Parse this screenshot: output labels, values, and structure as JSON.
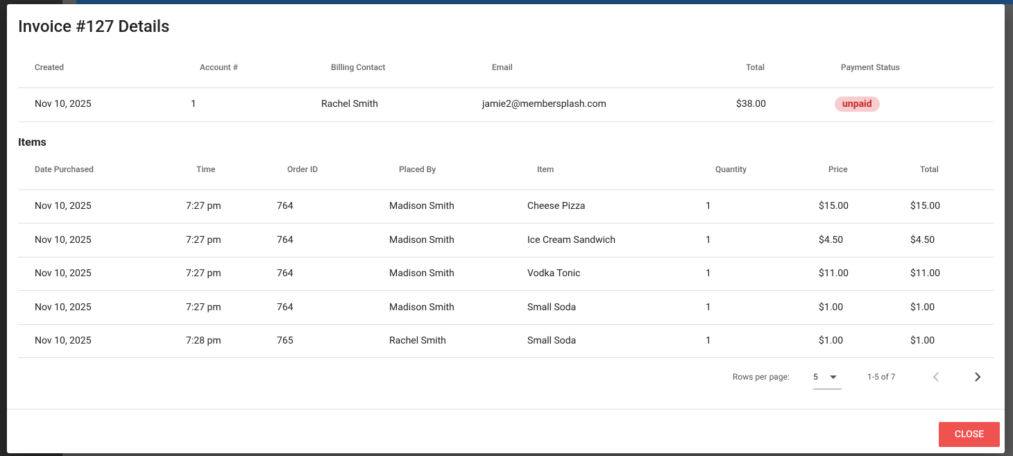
{
  "dialog": {
    "title": "Invoice #127 Details",
    "invoice_table": {
      "headers": [
        "Created",
        "Account #",
        "Billing Contact",
        "Email",
        "Total",
        "Payment Status"
      ],
      "rows": [
        [
          "Nov 10, 2025",
          "1",
          "Rachel Smith",
          "jamie2@membersplash.com",
          "$38.00",
          "unpaid"
        ]
      ]
    },
    "items_title": "Items",
    "items_table": {
      "headers": [
        "Date Purchased",
        "Time",
        "Order ID",
        "Placed By",
        "Item",
        "Quantity",
        "Price",
        "Total"
      ],
      "rows": [
        [
          "Nov 10, 2025",
          "7:27 pm",
          "764",
          "Madison Smith",
          "Cheese Pizza",
          "1",
          "$15.00",
          "$15.00"
        ],
        [
          "Nov 10, 2025",
          "7:27 pm",
          "764",
          "Madison Smith",
          "Ice Cream Sandwich",
          "1",
          "$4.50",
          "$4.50"
        ],
        [
          "Nov 10, 2025",
          "7:27 pm",
          "764",
          "Madison Smith",
          "Vodka Tonic",
          "1",
          "$11.00",
          "$11.00"
        ],
        [
          "Nov 10, 2025",
          "7:27 pm",
          "764",
          "Madison Smith",
          "Small Soda",
          "1",
          "$1.00",
          "$1.00"
        ],
        [
          "Nov 10, 2025",
          "7:28 pm",
          "765",
          "Rachel Smith",
          "Small Soda",
          "1",
          "$1.00",
          "$1.00"
        ]
      ]
    },
    "pagination": {
      "rows_per_page_label": "Rows per page:",
      "rows_per_page": "5",
      "range": "1-5 of 7"
    },
    "close_button": "CLOSE"
  }
}
